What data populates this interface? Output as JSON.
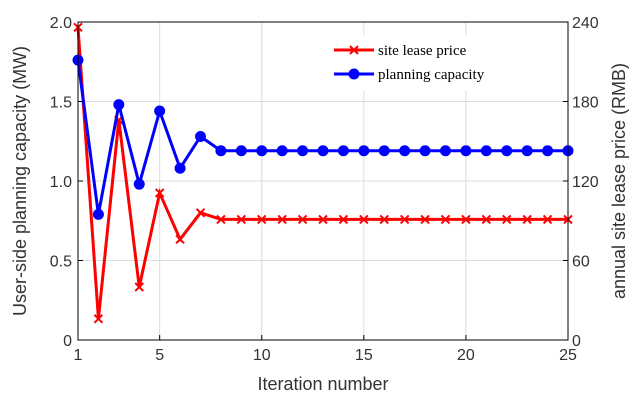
{
  "chart_data": {
    "type": "line",
    "xlabel": "Iteration number",
    "ylabel_left": "User-side planning capacity (MW)",
    "ylabel_right": "annual site lease price (RMB)",
    "xlim": [
      1,
      25
    ],
    "ylim_left": [
      0,
      2.0
    ],
    "ylim_right": [
      0,
      240
    ],
    "grid": true,
    "legend_position": "top-right",
    "x_ticks": [
      "1",
      "5",
      "10",
      "15",
      "20",
      "25"
    ],
    "y_left_ticks": [
      "0",
      "0.5",
      "1.0",
      "1.5",
      "2.0"
    ],
    "y_right_ticks": [
      "0",
      "60",
      "120",
      "180",
      "240"
    ],
    "x": [
      1,
      2,
      3,
      4,
      5,
      6,
      7,
      8,
      9,
      10,
      11,
      12,
      13,
      14,
      15,
      16,
      17,
      18,
      19,
      20,
      21,
      22,
      23,
      24,
      25
    ],
    "series": [
      {
        "name": "site lease price",
        "axis": "right",
        "color": "#ff0000",
        "marker": "x",
        "values": [
          236,
          16,
          166,
          40,
          111,
          76,
          96,
          91,
          91,
          91,
          91,
          91,
          91,
          91,
          91,
          91,
          91,
          91,
          91,
          91,
          91,
          91,
          91,
          91,
          91
        ]
      },
      {
        "name": "planning capacity",
        "axis": "left",
        "color": "#0000ff",
        "marker": "circle",
        "values": [
          1.76,
          0.79,
          1.48,
          0.98,
          1.44,
          1.08,
          1.28,
          1.19,
          1.19,
          1.19,
          1.19,
          1.19,
          1.19,
          1.19,
          1.19,
          1.19,
          1.19,
          1.19,
          1.19,
          1.19,
          1.19,
          1.19,
          1.19,
          1.19,
          1.19
        ]
      }
    ]
  }
}
